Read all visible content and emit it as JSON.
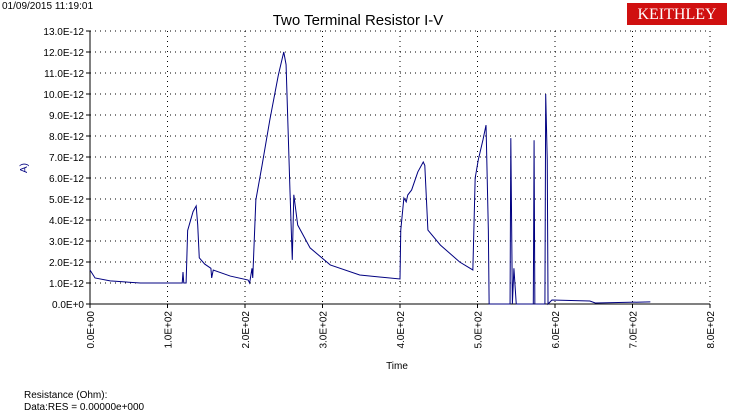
{
  "header": {
    "timestamp": "01/09/2015 11:19:01",
    "logo": "KEITHLEY"
  },
  "chart_data": {
    "type": "line",
    "title": "Two Terminal Resistor I-V",
    "x_label": "Time",
    "y_label": "A)",
    "xlim": [
      0,
      800
    ],
    "ylim": [
      0,
      1.3e-11
    ],
    "grid": true,
    "xticks": [
      {
        "value": 0,
        "label": "0.0E+00"
      },
      {
        "value": 100,
        "label": "1.0E+02"
      },
      {
        "value": 200,
        "label": "2.0E+02"
      },
      {
        "value": 300,
        "label": "3.0E+02"
      },
      {
        "value": 400,
        "label": "4.0E+02"
      },
      {
        "value": 500,
        "label": "5.0E+02"
      },
      {
        "value": 600,
        "label": "6.0E+02"
      },
      {
        "value": 700,
        "label": "7.0E+02"
      },
      {
        "value": 800,
        "label": "8.0E+02"
      }
    ],
    "yticks": [
      {
        "value": 0,
        "label": "0.0E+0"
      },
      {
        "value": 1e-12,
        "label": "1.0E-12"
      },
      {
        "value": 2e-12,
        "label": "2.0E-12"
      },
      {
        "value": 3e-12,
        "label": "3.0E-12"
      },
      {
        "value": 4e-12,
        "label": "4.0E-12"
      },
      {
        "value": 5e-12,
        "label": "5.0E-12"
      },
      {
        "value": 6e-12,
        "label": "6.0E-12"
      },
      {
        "value": 7e-12,
        "label": "7.0E-12"
      },
      {
        "value": 8e-12,
        "label": "8.0E-12"
      },
      {
        "value": 9e-12,
        "label": "9.0E-12"
      },
      {
        "value": 1e-11,
        "label": "10.0E-12"
      },
      {
        "value": 1.1e-11,
        "label": "11.0E-12"
      },
      {
        "value": 1.2e-11,
        "label": "12.0E-12"
      },
      {
        "value": 1.3e-11,
        "label": "13.0E-12"
      }
    ],
    "x": [
      0,
      6.5,
      26,
      65,
      119,
      120,
      121,
      124,
      126,
      133,
      137,
      139,
      141,
      148,
      156,
      157,
      159,
      181,
      204,
      206,
      209,
      210,
      214,
      222,
      232,
      243,
      250,
      253,
      258,
      261,
      263,
      268,
      284,
      310,
      348,
      400,
      401,
      405,
      408,
      410,
      415,
      423,
      430,
      432,
      436,
      452,
      477,
      494,
      497,
      501,
      507,
      511,
      514,
      515,
      542,
      543,
      545,
      547,
      550,
      572,
      573,
      574,
      587,
      588,
      590,
      591,
      596,
      645,
      652,
      723
    ],
    "series": [
      {
        "name": "I",
        "color": "#000080",
        "values": [
          1.62e-12,
          1.24e-12,
          1.1e-12,
          1e-12,
          1e-12,
          1.52e-12,
          1e-12,
          1e-12,
          3.5e-12,
          4.4e-12,
          4.67e-12,
          3.76e-12,
          2.2e-12,
          1.9e-12,
          1.7e-12,
          1.24e-12,
          1.62e-12,
          1.33e-12,
          1.14e-12,
          1e-12,
          1.7e-12,
          1.24e-12,
          4.95e-12,
          6.6e-12,
          8.76e-12,
          1.09e-11,
          1.2e-11,
          1.14e-11,
          5.43e-12,
          2.1e-12,
          5.2e-12,
          3.76e-12,
          2.67e-12,
          1.86e-12,
          1.38e-12,
          1.19e-12,
          3.52e-12,
          5.05e-12,
          4.86e-12,
          5.19e-12,
          5.43e-12,
          6.29e-12,
          6.76e-12,
          6.6e-12,
          3.52e-12,
          2.81e-12,
          2e-12,
          1.62e-12,
          6e-12,
          6.86e-12,
          7.81e-12,
          8.52e-12,
          3.52e-12,
          0,
          0,
          7.9e-12,
          0,
          1.7e-12,
          0,
          0,
          7.8e-12,
          0,
          0,
          1e-11,
          6.86e-12,
          0,
          1.9e-13,
          1.4e-13,
          5e-14,
          1e-13
        ]
      }
    ]
  },
  "footer": {
    "line1": "Resistance (Ohm):",
    "line2": "Data:RES = 0.00000e+000"
  }
}
